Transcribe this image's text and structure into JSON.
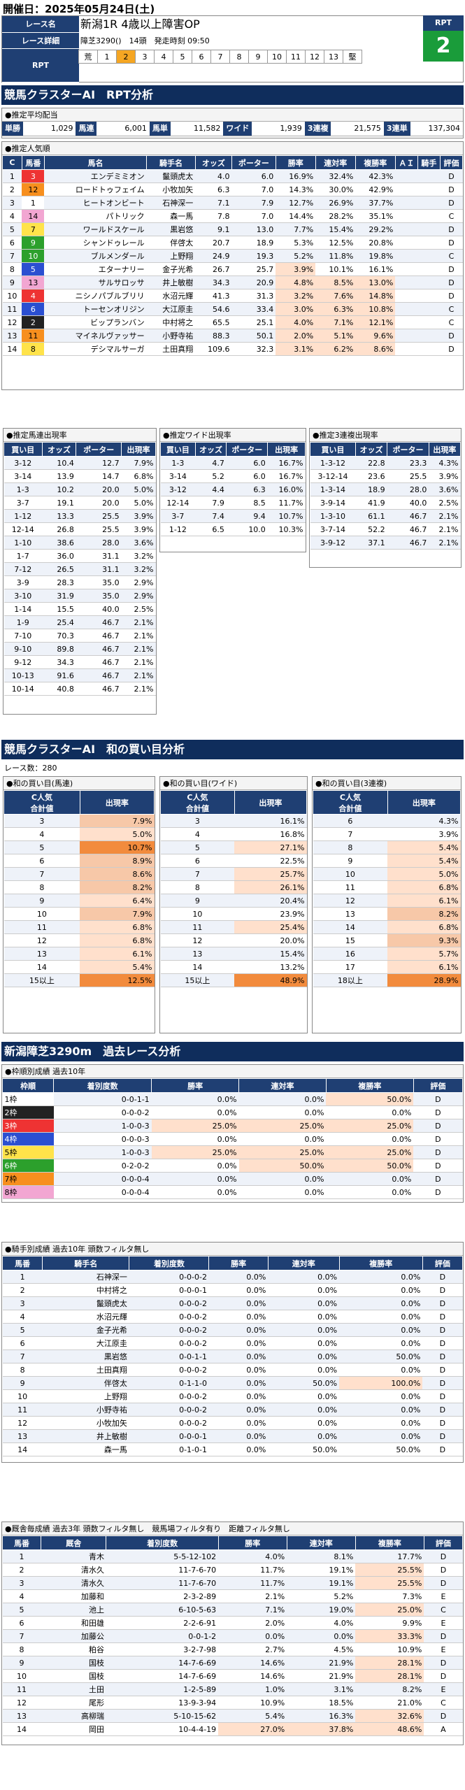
{
  "header": {
    "date": "開催日：2025年05月24日(土)",
    "race_label": "レース名",
    "race_name": "新潟1R 4歳以上障害OP",
    "detail_label": "レース詳細",
    "detail": "障芝3290()　14頭　発走時刻 09:50",
    "rpt_label": "RPT",
    "rpt_value": "2",
    "rpt_scale": [
      "荒",
      "1",
      "2",
      "3",
      "4",
      "5",
      "6",
      "7",
      "8",
      "9",
      "10",
      "11",
      "12",
      "13",
      "堅"
    ]
  },
  "sec1": "競馬クラスターAI　RPT分析",
  "payout": {
    "title": "●推定平均配当",
    "items": [
      [
        "単勝",
        "1,029"
      ],
      [
        "馬連",
        "6,001"
      ],
      [
        "馬単",
        "11,582"
      ],
      [
        "ワイド",
        "1,939"
      ],
      [
        "3連複",
        "21,575"
      ],
      [
        "3連単",
        "137,304"
      ]
    ]
  },
  "pop": {
    "title": "●推定人気順",
    "headers": [
      "C",
      "馬番",
      "馬名",
      "騎手名",
      "オッズ",
      "ポーター",
      "勝率",
      "連対率",
      "複勝率",
      "ＡＩ",
      "騎手",
      "評価"
    ],
    "rows": [
      [
        "1",
        "3",
        "エンデミミオン",
        "鬣頭虎太",
        "4.0",
        "6.0",
        "16.9%",
        "32.4%",
        "42.3%",
        "",
        "",
        "D"
      ],
      [
        "2",
        "12",
        "ロードトゥフェイム",
        "小牧加矢",
        "6.3",
        "7.0",
        "14.3%",
        "30.0%",
        "42.9%",
        "",
        "",
        "D"
      ],
      [
        "3",
        "1",
        "ヒートオンビート",
        "石神深一",
        "7.1",
        "7.9",
        "12.7%",
        "26.9%",
        "37.7%",
        "",
        "",
        "D"
      ],
      [
        "4",
        "14",
        "パトリック",
        "森一馬",
        "7.8",
        "7.0",
        "14.4%",
        "28.2%",
        "35.1%",
        "",
        "",
        "C"
      ],
      [
        "5",
        "7",
        "ワールドスケール",
        "黒岩悠",
        "9.1",
        "13.0",
        "7.7%",
        "15.4%",
        "29.2%",
        "",
        "",
        "D"
      ],
      [
        "6",
        "9",
        "シャンドゥレール",
        "伴啓太",
        "20.7",
        "18.9",
        "5.3%",
        "12.5%",
        "20.8%",
        "",
        "",
        "D"
      ],
      [
        "7",
        "10",
        "ブルメンダール",
        "上野翔",
        "24.9",
        "19.3",
        "5.2%",
        "11.8%",
        "19.8%",
        "",
        "",
        "C"
      ],
      [
        "8",
        "5",
        "エターナリー",
        "金子光希",
        "26.7",
        "25.7",
        "3.9%",
        "10.1%",
        "16.1%",
        "",
        "",
        "D"
      ],
      [
        "9",
        "13",
        "サルサロッサ",
        "井上敏樹",
        "34.3",
        "20.9",
        "4.8%",
        "8.5%",
        "13.0%",
        "",
        "",
        "D"
      ],
      [
        "10",
        "4",
        "ニシノパブルブリリ",
        "水沼元輝",
        "41.3",
        "31.3",
        "3.2%",
        "7.6%",
        "14.8%",
        "",
        "",
        "D"
      ],
      [
        "11",
        "6",
        "トーセンオリジン",
        "大江原圭",
        "54.6",
        "33.4",
        "3.0%",
        "6.3%",
        "10.8%",
        "",
        "",
        "C"
      ],
      [
        "12",
        "2",
        "ビップランバン",
        "中村将之",
        "65.5",
        "25.1",
        "4.0%",
        "7.1%",
        "12.1%",
        "",
        "",
        "C"
      ],
      [
        "13",
        "11",
        "マイネルヴァッサー",
        "小野寺祐",
        "88.3",
        "50.1",
        "2.0%",
        "5.1%",
        "9.6%",
        "",
        "",
        "D"
      ],
      [
        "14",
        "8",
        "デシマルサーガ",
        "土田真翔",
        "109.6",
        "32.3",
        "3.1%",
        "6.2%",
        "8.6%",
        "",
        "",
        "D"
      ]
    ]
  },
  "umaren": {
    "title": "●推定馬連出現率",
    "headers": [
      "買い目",
      "オッズ",
      "ポーター",
      "出現率"
    ],
    "rows": [
      [
        "3-12",
        "10.4",
        "12.7",
        "7.9%"
      ],
      [
        "3-14",
        "13.9",
        "14.7",
        "6.8%"
      ],
      [
        "1-3",
        "10.2",
        "20.0",
        "5.0%"
      ],
      [
        "3-7",
        "19.1",
        "20.0",
        "5.0%"
      ],
      [
        "1-12",
        "13.3",
        "25.5",
        "3.9%"
      ],
      [
        "12-14",
        "26.8",
        "25.5",
        "3.9%"
      ],
      [
        "1-10",
        "38.6",
        "28.0",
        "3.6%"
      ],
      [
        "1-7",
        "36.0",
        "31.1",
        "3.2%"
      ],
      [
        "7-12",
        "26.5",
        "31.1",
        "3.2%"
      ],
      [
        "3-9",
        "28.3",
        "35.0",
        "2.9%"
      ],
      [
        "3-10",
        "31.9",
        "35.0",
        "2.9%"
      ],
      [
        "1-14",
        "15.5",
        "40.0",
        "2.5%"
      ],
      [
        "1-9",
        "25.4",
        "46.7",
        "2.1%"
      ],
      [
        "7-10",
        "70.3",
        "46.7",
        "2.1%"
      ],
      [
        "9-10",
        "89.8",
        "46.7",
        "2.1%"
      ],
      [
        "9-12",
        "34.3",
        "46.7",
        "2.1%"
      ],
      [
        "10-13",
        "91.6",
        "46.7",
        "2.1%"
      ],
      [
        "10-14",
        "40.8",
        "46.7",
        "2.1%"
      ]
    ]
  },
  "wide": {
    "title": "●推定ワイド出現率",
    "headers": [
      "買い目",
      "オッズ",
      "ポーター",
      "出現率"
    ],
    "rows": [
      [
        "1-3",
        "4.7",
        "6.0",
        "16.7%"
      ],
      [
        "3-14",
        "5.2",
        "6.0",
        "16.7%"
      ],
      [
        "3-12",
        "4.4",
        "6.3",
        "16.0%"
      ],
      [
        "12-14",
        "7.9",
        "8.5",
        "11.7%"
      ],
      [
        "3-7",
        "7.4",
        "9.4",
        "10.7%"
      ],
      [
        "1-12",
        "6.5",
        "10.0",
        "10.3%"
      ]
    ]
  },
  "trio": {
    "title": "●推定3連複出現率",
    "headers": [
      "買い目",
      "オッズ",
      "ポーター",
      "出現率"
    ],
    "rows": [
      [
        "1-3-12",
        "22.8",
        "23.3",
        "4.3%"
      ],
      [
        "3-12-14",
        "23.6",
        "25.5",
        "3.9%"
      ],
      [
        "1-3-14",
        "18.9",
        "28.0",
        "3.6%"
      ],
      [
        "3-9-14",
        "41.9",
        "40.0",
        "2.5%"
      ],
      [
        "1-3-10",
        "61.1",
        "46.7",
        "2.1%"
      ],
      [
        "3-7-14",
        "52.2",
        "46.7",
        "2.1%"
      ],
      [
        "3-9-12",
        "37.1",
        "46.7",
        "2.1%"
      ]
    ]
  },
  "sec2": "競馬クラスターAI　和の買い目分析",
  "race_count": "レース数：280",
  "sum_umaren": {
    "title": "●和の買い目(馬連)",
    "headers": [
      "C人気\n合計値",
      "出現率"
    ],
    "rows": [
      [
        "3",
        "7.9%"
      ],
      [
        "4",
        "5.0%"
      ],
      [
        "5",
        "10.7%"
      ],
      [
        "6",
        "8.9%"
      ],
      [
        "7",
        "8.6%"
      ],
      [
        "8",
        "8.2%"
      ],
      [
        "9",
        "6.4%"
      ],
      [
        "10",
        "7.9%"
      ],
      [
        "11",
        "6.8%"
      ],
      [
        "12",
        "6.8%"
      ],
      [
        "13",
        "6.1%"
      ],
      [
        "14",
        "5.4%"
      ],
      [
        "15以上",
        "12.5%"
      ]
    ]
  },
  "sum_wide": {
    "title": "●和の買い目(ワイド)",
    "headers": [
      "C人気\n合計値",
      "出現率"
    ],
    "rows": [
      [
        "3",
        "16.1%"
      ],
      [
        "4",
        "16.8%"
      ],
      [
        "5",
        "27.1%"
      ],
      [
        "6",
        "22.5%"
      ],
      [
        "7",
        "25.7%"
      ],
      [
        "8",
        "26.1%"
      ],
      [
        "9",
        "20.4%"
      ],
      [
        "10",
        "23.9%"
      ],
      [
        "11",
        "25.4%"
      ],
      [
        "12",
        "20.0%"
      ],
      [
        "13",
        "15.4%"
      ],
      [
        "14",
        "13.2%"
      ],
      [
        "15以上",
        "48.9%"
      ]
    ]
  },
  "sum_trio": {
    "title": "●和の買い目(3連複)",
    "headers": [
      "C人気\n合計値",
      "出現率"
    ],
    "rows": [
      [
        "6",
        "4.3%"
      ],
      [
        "7",
        "3.9%"
      ],
      [
        "8",
        "5.4%"
      ],
      [
        "9",
        "5.4%"
      ],
      [
        "10",
        "5.0%"
      ],
      [
        "11",
        "6.8%"
      ],
      [
        "12",
        "6.1%"
      ],
      [
        "13",
        "8.2%"
      ],
      [
        "14",
        "6.8%"
      ],
      [
        "15",
        "9.3%"
      ],
      [
        "16",
        "5.7%"
      ],
      [
        "17",
        "6.1%"
      ],
      [
        "18以上",
        "28.9%"
      ]
    ]
  },
  "sec3": "新潟障芝3290m　過去レース分析",
  "waku": {
    "title": "●枠順別成績 過去10年",
    "headers": [
      "枠順",
      "着別度数",
      "勝率",
      "連対率",
      "複勝率",
      "評価"
    ],
    "rows": [
      [
        "1枠",
        "0-0-1-1",
        "0.0%",
        "0.0%",
        "50.0%",
        "D"
      ],
      [
        "2枠",
        "0-0-0-2",
        "0.0%",
        "0.0%",
        "0.0%",
        "D"
      ],
      [
        "3枠",
        "1-0-0-3",
        "25.0%",
        "25.0%",
        "25.0%",
        "D"
      ],
      [
        "4枠",
        "0-0-0-3",
        "0.0%",
        "0.0%",
        "0.0%",
        "D"
      ],
      [
        "5枠",
        "1-0-0-3",
        "25.0%",
        "25.0%",
        "25.0%",
        "D"
      ],
      [
        "6枠",
        "0-2-0-2",
        "0.0%",
        "50.0%",
        "50.0%",
        "D"
      ],
      [
        "7枠",
        "0-0-0-4",
        "0.0%",
        "0.0%",
        "0.0%",
        "D"
      ],
      [
        "8枠",
        "0-0-0-4",
        "0.0%",
        "0.0%",
        "0.0%",
        "D"
      ]
    ]
  },
  "jockey": {
    "title": "●騎手別成績 過去10年 頭数フィルタ無し",
    "headers": [
      "馬番",
      "騎手名",
      "着別度数",
      "勝率",
      "連対率",
      "複勝率",
      "評価"
    ],
    "rows": [
      [
        "1",
        "石神深一",
        "0-0-0-2",
        "0.0%",
        "0.0%",
        "0.0%",
        "D"
      ],
      [
        "2",
        "中村将之",
        "0-0-0-1",
        "0.0%",
        "0.0%",
        "0.0%",
        "D"
      ],
      [
        "3",
        "鬣頭虎太",
        "0-0-0-2",
        "0.0%",
        "0.0%",
        "0.0%",
        "D"
      ],
      [
        "4",
        "水沼元輝",
        "0-0-0-2",
        "0.0%",
        "0.0%",
        "0.0%",
        "D"
      ],
      [
        "5",
        "金子光希",
        "0-0-0-2",
        "0.0%",
        "0.0%",
        "0.0%",
        "D"
      ],
      [
        "6",
        "大江原圭",
        "0-0-0-2",
        "0.0%",
        "0.0%",
        "0.0%",
        "D"
      ],
      [
        "7",
        "黒岩悠",
        "0-0-1-1",
        "0.0%",
        "0.0%",
        "50.0%",
        "D"
      ],
      [
        "8",
        "土田真翔",
        "0-0-0-2",
        "0.0%",
        "0.0%",
        "0.0%",
        "D"
      ],
      [
        "9",
        "伴啓太",
        "0-1-1-0",
        "0.0%",
        "50.0%",
        "100.0%",
        "D"
      ],
      [
        "10",
        "上野翔",
        "0-0-0-2",
        "0.0%",
        "0.0%",
        "0.0%",
        "D"
      ],
      [
        "11",
        "小野寺祐",
        "0-0-0-2",
        "0.0%",
        "0.0%",
        "0.0%",
        "D"
      ],
      [
        "12",
        "小牧加矢",
        "0-0-0-2",
        "0.0%",
        "0.0%",
        "0.0%",
        "D"
      ],
      [
        "13",
        "井上敏樹",
        "0-0-0-1",
        "0.0%",
        "0.0%",
        "0.0%",
        "D"
      ],
      [
        "14",
        "森一馬",
        "0-1-0-1",
        "0.0%",
        "50.0%",
        "50.0%",
        "D"
      ]
    ]
  },
  "trainer": {
    "title": "●厩舎毎成績 過去3年 頭数フィルタ無し　競馬場フィルタ有り　距離フィルタ無し",
    "headers": [
      "馬番",
      "厩舎",
      "着別度数",
      "勝率",
      "連対率",
      "複勝率",
      "評価"
    ],
    "rows": [
      [
        "1",
        "青木",
        "5-5-12-102",
        "4.0%",
        "8.1%",
        "17.7%",
        "D"
      ],
      [
        "2",
        "清水久",
        "11-7-6-70",
        "11.7%",
        "19.1%",
        "25.5%",
        "D"
      ],
      [
        "3",
        "清水久",
        "11-7-6-70",
        "11.7%",
        "19.1%",
        "25.5%",
        "D"
      ],
      [
        "4",
        "加藤和",
        "2-3-2-89",
        "2.1%",
        "5.2%",
        "7.3%",
        "E"
      ],
      [
        "5",
        "池上",
        "6-10-5-63",
        "7.1%",
        "19.0%",
        "25.0%",
        "C"
      ],
      [
        "6",
        "和田雄",
        "2-2-6-91",
        "2.0%",
        "4.0%",
        "9.9%",
        "E"
      ],
      [
        "7",
        "加藤公",
        "0-0-1-2",
        "0.0%",
        "0.0%",
        "33.3%",
        "D"
      ],
      [
        "8",
        "粕谷",
        "3-2-7-98",
        "2.7%",
        "4.5%",
        "10.9%",
        "E"
      ],
      [
        "9",
        "国枝",
        "14-7-6-69",
        "14.6%",
        "21.9%",
        "28.1%",
        "D"
      ],
      [
        "10",
        "国枝",
        "14-7-6-69",
        "14.6%",
        "21.9%",
        "28.1%",
        "D"
      ],
      [
        "11",
        "土田",
        "1-2-5-89",
        "1.0%",
        "3.1%",
        "8.2%",
        "E"
      ],
      [
        "12",
        "尾形",
        "13-9-3-94",
        "10.9%",
        "18.5%",
        "21.0%",
        "C"
      ],
      [
        "13",
        "高柳瑞",
        "5-10-15-62",
        "5.4%",
        "16.3%",
        "32.6%",
        "D"
      ],
      [
        "14",
        "岡田",
        "10-4-4-19",
        "27.0%",
        "37.8%",
        "48.6%",
        "A"
      ]
    ]
  }
}
